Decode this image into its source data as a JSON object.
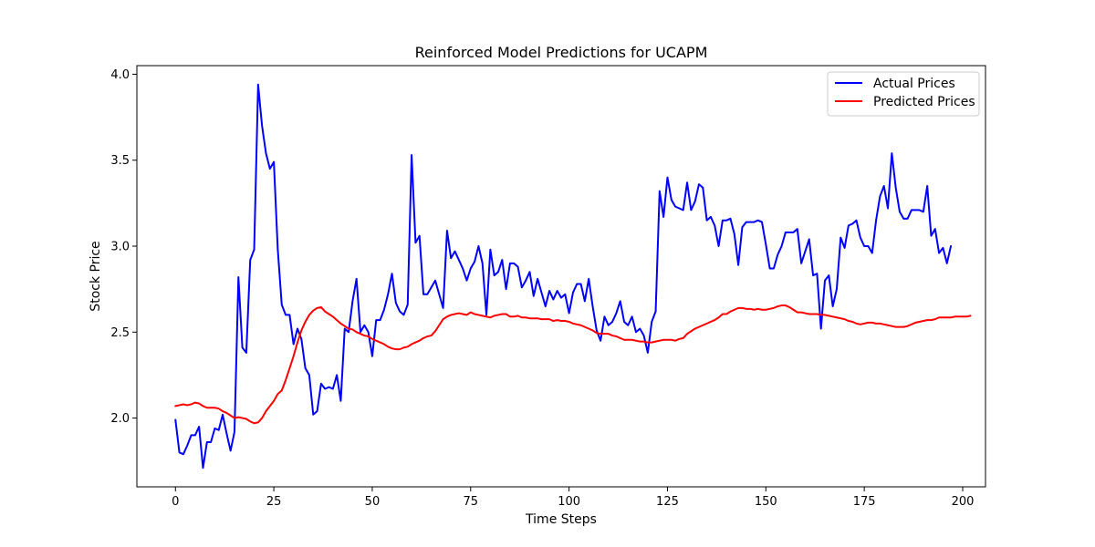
{
  "chart_data": {
    "type": "line",
    "title": "Reinforced Model Predictions for UCAPM",
    "xlabel": "Time Steps",
    "ylabel": "Stock Price",
    "xlim": [
      -9.8,
      205.8
    ],
    "ylim": [
      1.6,
      4.05
    ],
    "xticks": [
      0,
      25,
      50,
      75,
      100,
      125,
      150,
      175,
      200
    ],
    "yticks": [
      2.0,
      2.5,
      3.0,
      3.5,
      4.0
    ],
    "xtick_labels": [
      "0",
      "25",
      "50",
      "75",
      "100",
      "125",
      "150",
      "175",
      "200"
    ],
    "ytick_labels": [
      "2.0",
      "2.5",
      "3.0",
      "3.5",
      "4.0"
    ],
    "grid": false,
    "legend_position": "top-right",
    "series": [
      {
        "name": "Actual Prices",
        "color": "#0000ff",
        "values": [
          1.99,
          1.8,
          1.79,
          1.84,
          1.9,
          1.9,
          1.95,
          1.71,
          1.86,
          1.86,
          1.94,
          1.93,
          2.02,
          1.91,
          1.81,
          1.92,
          2.82,
          2.41,
          2.38,
          2.92,
          2.98,
          3.94,
          3.7,
          3.54,
          3.45,
          3.49,
          2.98,
          2.66,
          2.6,
          2.6,
          2.43,
          2.52,
          2.46,
          2.29,
          2.25,
          2.02,
          2.04,
          2.2,
          2.17,
          2.18,
          2.17,
          2.25,
          2.1,
          2.52,
          2.5,
          2.68,
          2.81,
          2.5,
          2.54,
          2.5,
          2.36,
          2.57,
          2.57,
          2.63,
          2.72,
          2.84,
          2.67,
          2.62,
          2.6,
          2.66,
          3.53,
          3.02,
          3.06,
          2.72,
          2.72,
          2.76,
          2.8,
          2.72,
          2.64,
          3.09,
          2.93,
          2.97,
          2.92,
          2.87,
          2.8,
          2.87,
          2.91,
          3.0,
          2.9,
          2.6,
          2.98,
          2.83,
          2.85,
          2.92,
          2.75,
          2.9,
          2.9,
          2.88,
          2.76,
          2.8,
          2.85,
          2.71,
          2.81,
          2.73,
          2.65,
          2.74,
          2.69,
          2.74,
          2.7,
          2.72,
          2.61,
          2.73,
          2.78,
          2.78,
          2.68,
          2.81,
          2.65,
          2.51,
          2.45,
          2.59,
          2.54,
          2.56,
          2.61,
          2.68,
          2.56,
          2.54,
          2.59,
          2.5,
          2.52,
          2.48,
          2.38,
          2.56,
          2.62,
          3.32,
          3.17,
          3.4,
          3.27,
          3.23,
          3.22,
          3.21,
          3.37,
          3.21,
          3.26,
          3.36,
          3.34,
          3.15,
          3.17,
          3.12,
          3.0,
          3.15,
          3.15,
          3.16,
          3.07,
          2.89,
          3.11,
          3.14,
          3.14,
          3.14,
          3.15,
          3.14,
          3.01,
          2.87,
          2.87,
          2.95,
          3.0,
          3.08,
          3.08,
          3.08,
          3.1,
          2.9,
          2.97,
          3.04,
          2.83,
          2.84,
          2.52,
          2.8,
          2.83,
          2.65,
          2.75,
          3.05,
          2.99,
          3.12,
          3.13,
          3.15,
          3.05,
          3.0,
          3.0,
          2.96,
          3.15,
          3.29,
          3.35,
          3.22,
          3.54,
          3.34,
          3.2,
          3.16,
          3.16,
          3.21,
          3.21,
          3.21,
          3.2,
          3.35,
          3.06,
          3.1,
          2.96,
          2.99,
          2.9,
          3.0
        ]
      },
      {
        "name": "Predicted Prices",
        "color": "#ff0000",
        "values": [
          2.07,
          2.075,
          2.08,
          2.075,
          2.08,
          2.09,
          2.085,
          2.07,
          2.06,
          2.06,
          2.06,
          2.055,
          2.04,
          2.03,
          2.015,
          2.0,
          2.005,
          2.0,
          1.995,
          1.98,
          1.97,
          1.975,
          2.0,
          2.04,
          2.07,
          2.1,
          2.14,
          2.16,
          2.22,
          2.29,
          2.36,
          2.44,
          2.51,
          2.56,
          2.6,
          2.625,
          2.64,
          2.645,
          2.62,
          2.605,
          2.59,
          2.57,
          2.55,
          2.535,
          2.52,
          2.515,
          2.5,
          2.49,
          2.48,
          2.475,
          2.46,
          2.45,
          2.44,
          2.43,
          2.415,
          2.405,
          2.4,
          2.4,
          2.41,
          2.415,
          2.43,
          2.44,
          2.45,
          2.465,
          2.475,
          2.48,
          2.505,
          2.54,
          2.575,
          2.59,
          2.6,
          2.605,
          2.61,
          2.605,
          2.6,
          2.615,
          2.605,
          2.6,
          2.595,
          2.59,
          2.585,
          2.595,
          2.6,
          2.605,
          2.605,
          2.59,
          2.59,
          2.595,
          2.585,
          2.585,
          2.58,
          2.58,
          2.58,
          2.575,
          2.575,
          2.575,
          2.565,
          2.57,
          2.565,
          2.565,
          2.56,
          2.55,
          2.545,
          2.54,
          2.53,
          2.52,
          2.51,
          2.495,
          2.49,
          2.49,
          2.49,
          2.48,
          2.475,
          2.465,
          2.455,
          2.455,
          2.455,
          2.45,
          2.445,
          2.445,
          2.44,
          2.44,
          2.445,
          2.45,
          2.455,
          2.455,
          2.455,
          2.45,
          2.46,
          2.465,
          2.49,
          2.505,
          2.52,
          2.53,
          2.54,
          2.55,
          2.56,
          2.57,
          2.585,
          2.605,
          2.605,
          2.62,
          2.63,
          2.64,
          2.64,
          2.635,
          2.635,
          2.63,
          2.635,
          2.63,
          2.63,
          2.635,
          2.64,
          2.65,
          2.655,
          2.655,
          2.645,
          2.63,
          2.615,
          2.615,
          2.61,
          2.605,
          2.605,
          2.605,
          2.6,
          2.6,
          2.595,
          2.59,
          2.585,
          2.58,
          2.575,
          2.565,
          2.56,
          2.55,
          2.545,
          2.55,
          2.555,
          2.555,
          2.55,
          2.55,
          2.545,
          2.54,
          2.535,
          2.53,
          2.53,
          2.53,
          2.535,
          2.545,
          2.555,
          2.56,
          2.565,
          2.57,
          2.57,
          2.575,
          2.585,
          2.585,
          2.585,
          2.585,
          2.59,
          2.59,
          2.59,
          2.59,
          2.595
        ]
      }
    ]
  }
}
